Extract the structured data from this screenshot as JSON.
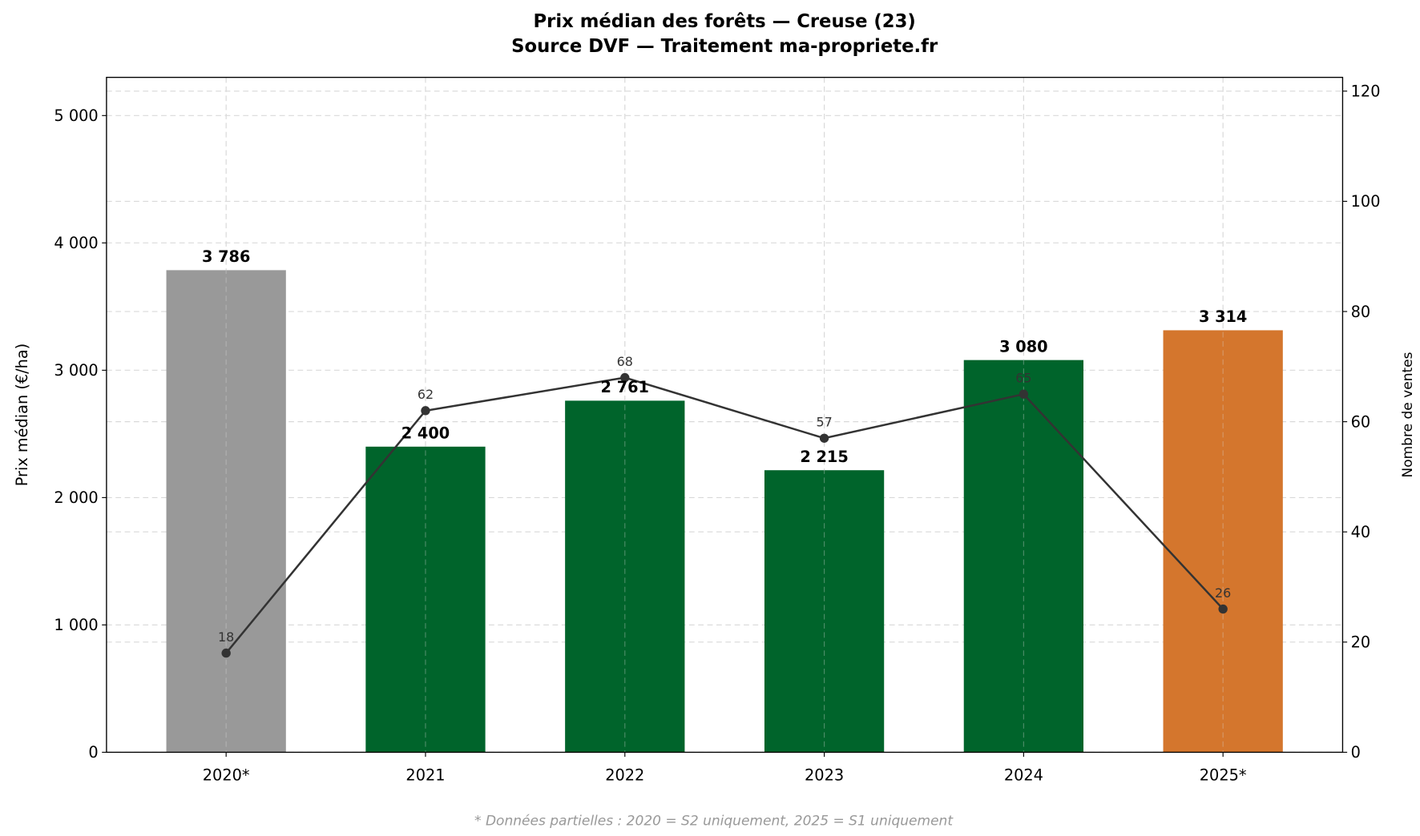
{
  "chart_data": {
    "type": "bar",
    "title": "Prix médian des forêts — Creuse (23)",
    "subtitle": "Source DVF — Traitement ma-propriete.fr",
    "categories": [
      "2020*",
      "2021",
      "2022",
      "2023",
      "2024",
      "2025*"
    ],
    "series": [
      {
        "type": "bar",
        "axis": "left",
        "values": [
          3786,
          2400,
          2761,
          2215,
          3080,
          3314
        ],
        "data_labels": [
          "3 786",
          "2 400",
          "2 761",
          "2 215",
          "3 080",
          "3 314"
        ],
        "colors": [
          "#999999",
          "#00642b",
          "#00642b",
          "#00642b",
          "#00642b",
          "#d4762d"
        ]
      },
      {
        "type": "line",
        "axis": "right",
        "values": [
          18,
          62,
          68,
          57,
          65,
          26
        ],
        "data_labels": [
          "18",
          "62",
          "68",
          "57",
          "65",
          "26"
        ],
        "color": "#333333"
      }
    ],
    "ylabel": "Prix médian (€/ha)",
    "y2label": "Nombre de ventes",
    "ylim": [
      0,
      5300
    ],
    "y2lim": [
      0,
      122.5
    ],
    "yticks": [
      0,
      1000,
      2000,
      3000,
      4000,
      5000
    ],
    "ytick_labels": [
      "0",
      "1 000",
      "2 000",
      "3 000",
      "4 000",
      "5 000"
    ],
    "y2ticks": [
      0,
      20,
      40,
      60,
      80,
      100,
      120
    ],
    "y2tick_labels": [
      "0",
      "20",
      "40",
      "60",
      "80",
      "100",
      "120"
    ],
    "grid": true,
    "footnote": "* Données partielles : 2020 = S2 uniquement, 2025 = S1 uniquement"
  }
}
